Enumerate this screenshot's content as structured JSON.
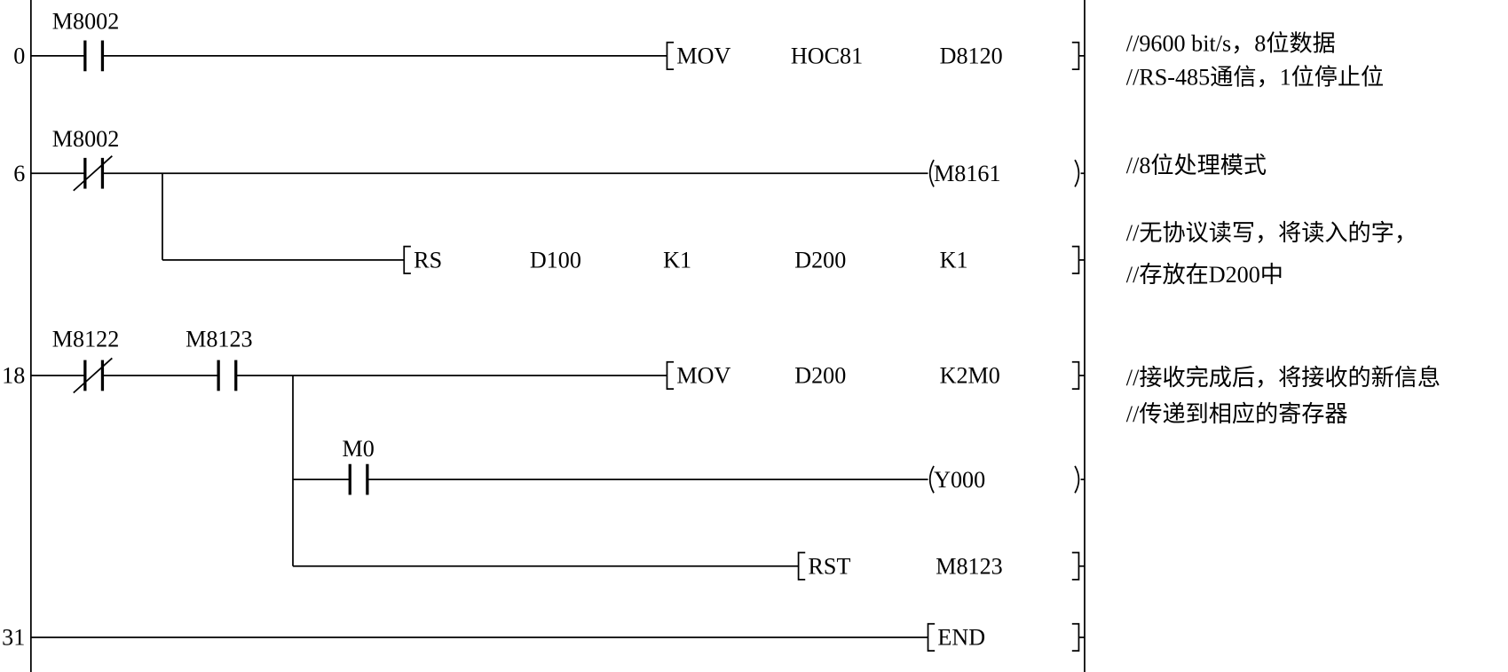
{
  "rungs": [
    {
      "step": "0",
      "contacts": [
        "M8002"
      ],
      "outputs": [
        {
          "op": "MOV",
          "args": [
            "HOC81",
            "D8120"
          ]
        }
      ]
    },
    {
      "step": "6",
      "contacts": [
        "M8002"
      ],
      "outputs": [
        {
          "coil": "M8161"
        },
        {
          "op": "RS",
          "args": [
            "D100",
            "K1",
            "D200",
            "K1"
          ]
        }
      ]
    },
    {
      "step": "18",
      "contacts": [
        "M8122",
        "M8123"
      ],
      "outputs": [
        {
          "op": "MOV",
          "args": [
            "D200",
            "K2M0"
          ]
        },
        {
          "contact": "M0",
          "coil": "Y000"
        },
        {
          "op": "RST",
          "args": [
            "M8123"
          ]
        }
      ]
    },
    {
      "step": "31",
      "outputs": [
        {
          "op": "END"
        }
      ]
    }
  ],
  "comments": [
    "//9600 bit/s，8位数据",
    "//RS-485通信，1位停止位",
    "//8位处理模式",
    "//无协议读写，将读入的字，",
    "//存放在D200中",
    "//接收完成后，将接收的新信息",
    "//传递到相应的寄存器"
  ]
}
